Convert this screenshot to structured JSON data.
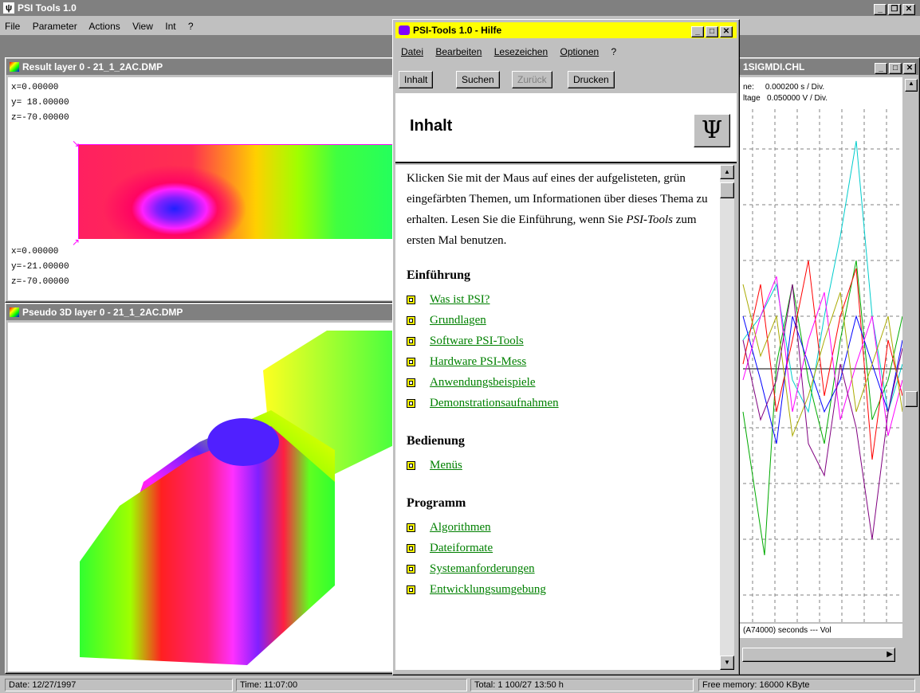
{
  "app": {
    "title": "PSI Tools 1.0",
    "menu": [
      "File",
      "Parameter",
      "Actions",
      "View",
      "Int",
      "?"
    ]
  },
  "result_window": {
    "title": "Result layer 0 - 21_1_2AC.DMP",
    "coords_top": [
      "x=0.00000",
      "y= 18.00000",
      "z=-70.00000"
    ],
    "coords_bottom": [
      "x=0.00000",
      "y=-21.00000",
      "z=-70.00000"
    ]
  },
  "pseudo_window": {
    "title": "Pseudo 3D layer 0 - 21_1_2AC.DMP"
  },
  "channel_window": {
    "title": "1SIGMDI.CHL",
    "header": [
      {
        "label": "ne:",
        "value": "0.000200 s / Div."
      },
      {
        "label": "ltage",
        "value": "0.050000 V / Div."
      }
    ],
    "footer_text": "(A74000) seconds --- Vol"
  },
  "help": {
    "title": "PSI-Tools 1.0 - Hilfe",
    "menu": [
      "Datei",
      "Bearbeiten",
      "Lesezeichen",
      "Optionen",
      "?"
    ],
    "buttons": [
      "Inhalt",
      "Suchen",
      "Zurück",
      "Drucken"
    ],
    "heading": "Inhalt",
    "intro": "Klicken Sie mit der Maus auf eines der aufgelisteten, grün eingefärbten Themen, um Informationen über dieses Thema zu erhalten. Lesen Sie die Einführung, wenn Sie",
    "intro_em": "PSI-Tools",
    "intro_end": "zum ersten Mal benutzen.",
    "sections": [
      {
        "title": "Einführung",
        "items": [
          "Was ist PSI?",
          "Grundlagen",
          "Software PSI-Tools",
          "Hardware PSI-Mess",
          "Anwendungsbeispiele",
          "Demonstrationsaufnahmen"
        ]
      },
      {
        "title": "Bedienung",
        "items": [
          "Menüs"
        ]
      },
      {
        "title": "Programm",
        "items": [
          "Algorithmen",
          "Dateiformate",
          "Systemanforderungen",
          "Entwicklungsumgebung"
        ]
      }
    ]
  },
  "status": {
    "pane1": "Date: 12/27/1997",
    "pane2": "Time: 11:07:00",
    "pane3": "Total: 1 100/27 13:50 h",
    "pane4": "Free memory: 16000 KByte"
  },
  "colors": {
    "title_active": "#000080",
    "title_inactive": "#808080",
    "help_titlebar": "#ffff00",
    "link": "#008000"
  }
}
